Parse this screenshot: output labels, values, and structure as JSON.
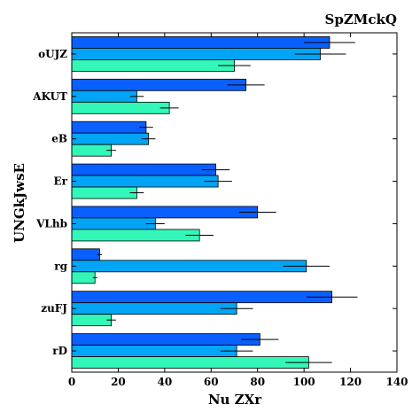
{
  "chart_data": {
    "type": "bar",
    "orientation": "horizontal",
    "title": "SpZMckQ",
    "xlabel": "Nu  ZXr",
    "ylabel": "UNGkJwsE",
    "xlim": [
      0,
      140
    ],
    "xticks": [
      "0",
      "20",
      "40",
      "60",
      "80",
      "100",
      "120",
      "140"
    ],
    "categories": [
      "oUJZ",
      "AKUT",
      "eB",
      "Er",
      "VLhb",
      "rg",
      "zuFJ",
      "rD"
    ],
    "series": [
      {
        "color": "#0a5fff",
        "values": [
          111,
          75,
          32,
          62,
          80,
          12,
          112,
          81
        ],
        "errors": [
          11,
          8,
          3,
          6,
          8,
          1,
          11,
          8
        ]
      },
      {
        "color": "#02a5f5",
        "values": [
          107,
          28,
          33,
          63,
          36,
          101,
          71,
          71
        ],
        "errors": [
          11,
          3,
          3,
          6,
          4,
          10,
          7,
          7
        ]
      },
      {
        "color": "#33f7b8",
        "values": [
          70,
          42,
          17,
          28,
          55,
          10,
          17,
          102
        ],
        "errors": [
          7,
          4,
          2,
          3,
          6,
          1,
          2,
          10
        ]
      }
    ],
    "grid": false
  }
}
